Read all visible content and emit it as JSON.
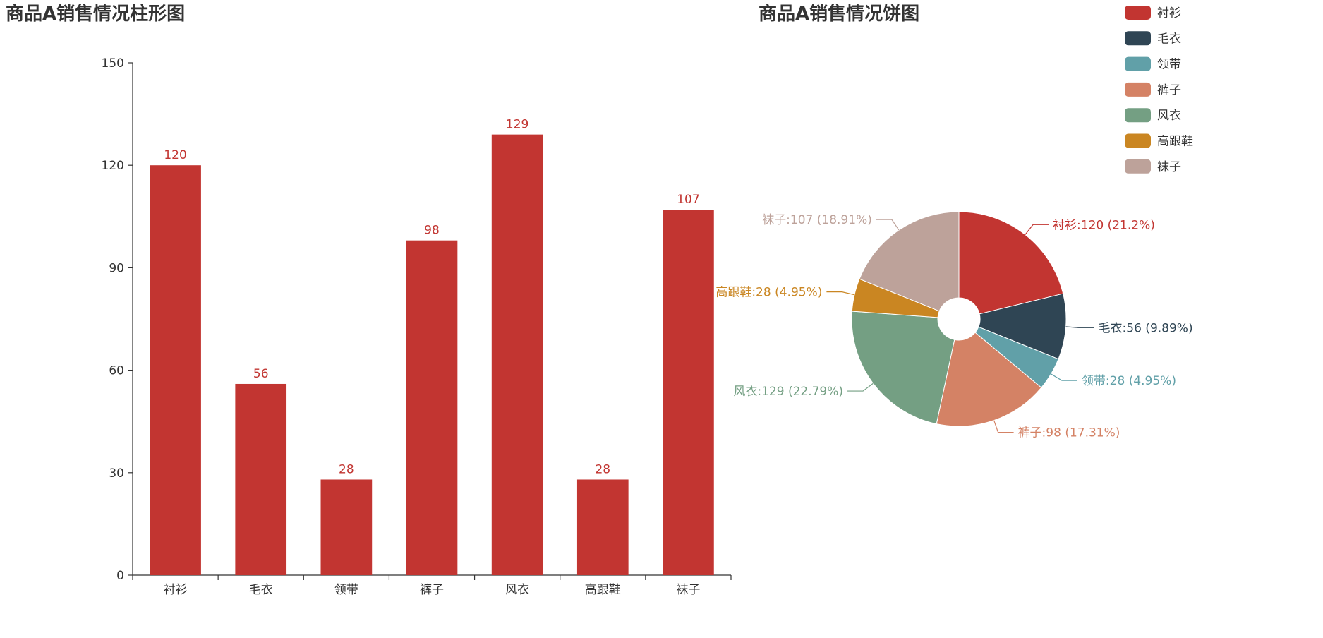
{
  "chart_data": [
    {
      "type": "bar",
      "title": "商品A销售情况柱形图",
      "categories": [
        "衬衫",
        "毛衣",
        "领带",
        "裤子",
        "风衣",
        "高跟鞋",
        "袜子"
      ],
      "values": [
        120,
        56,
        28,
        98,
        129,
        28,
        107
      ],
      "ylim": [
        0,
        150
      ],
      "yticks": [
        0,
        30,
        60,
        90,
        120,
        150
      ],
      "bar_color": "#c23531",
      "data_labels": [
        "120",
        "56",
        "28",
        "98",
        "129",
        "28",
        "107"
      ],
      "grid": false
    },
    {
      "type": "pie",
      "title": "商品A销售情况饼图",
      "legend_position": "top-right",
      "slices": [
        {
          "name": "衬衫",
          "value": 120,
          "color": "#c23531",
          "label": "衬衫:120 (21.2%)"
        },
        {
          "name": "毛衣",
          "value": 56,
          "color": "#2f4554",
          "label": "毛衣:56 (9.89%)"
        },
        {
          "name": "领带",
          "value": 28,
          "color": "#61a0a8",
          "label": "领带:28 (4.95%)"
        },
        {
          "name": "裤子",
          "value": 98,
          "color": "#d48265",
          "label": "裤子:98 (17.31%)"
        },
        {
          "name": "风衣",
          "value": 129,
          "color": "#749f83",
          "label": "风衣:129 (22.79%)"
        },
        {
          "name": "高跟鞋",
          "value": 28,
          "color": "#ca8622",
          "label": "高跟鞋:28 (4.95%)"
        },
        {
          "name": "袜子",
          "value": 107,
          "color": "#bda29a",
          "label": "袜子:107 (18.91%)"
        }
      ]
    }
  ]
}
